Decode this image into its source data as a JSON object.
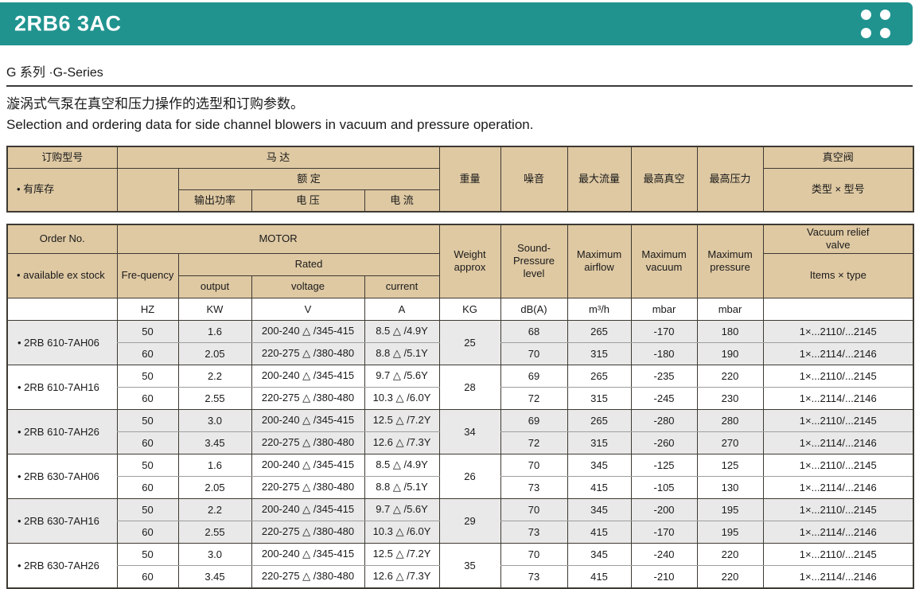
{
  "header": {
    "title": "2RB6 3AC"
  },
  "series_line": "G 系列 ·G-Series",
  "intro": {
    "zh": "漩涡式气泵在真空和压力操作的选型和订购参数。",
    "en": "Selection and ordering data for side channel blowers in vacuum and pressure operation."
  },
  "colors": {
    "accent_teal": "#20938F",
    "header_tan": "#DFC9A3",
    "row_shade_gray": "#E9E9E9",
    "grid_border": "#3E3A32"
  },
  "table_zh": {
    "order_no": "订购型号",
    "motor": "马 达",
    "available": "• 有库存",
    "rated": "额 定",
    "output_power": "输出功率",
    "voltage": "电 压",
    "current": "电 流",
    "weight": "重量",
    "noise": "噪音",
    "max_airflow": "最大流量",
    "max_vacuum": "最高真空",
    "max_pressure": "最高压力",
    "vacuum_valve": "真空阀",
    "type_model": "类型 × 型号"
  },
  "table_en": {
    "order_no": "Order No.",
    "motor": "MOTOR",
    "available": "• available ex stock",
    "frequency": "Fre-quency",
    "rated": "Rated",
    "output": "output",
    "voltage": "voltage",
    "current": "current",
    "weight": "Weight\napprox",
    "sound": "Sound-\nPressure\nlevel",
    "max_airflow": "Maximum\nairflow",
    "max_vacuum": "Maximum\nvacuum",
    "max_pressure": "Maximum\npressure",
    "valve": "Vacuum relief\nvalve",
    "items_type": "Items × type",
    "units": {
      "frequency": "HZ",
      "output": "KW",
      "voltage": "V",
      "current": "A",
      "weight": "KG",
      "sound": "dB(A)",
      "airflow": "m³/h",
      "vacuum": "mbar",
      "pressure": "mbar"
    }
  },
  "groups": [
    {
      "order": "• 2RB 610-7AH06",
      "weight": "25",
      "shaded": true,
      "sub": [
        {
          "hz": "50",
          "kw": "1.6",
          "v": "200-240 △ /345-415",
          "a": "8.5 △ /4.9Y",
          "db": "68",
          "m3h": "265",
          "vac": "-170",
          "pres": "180",
          "valve": "1×...2110/...2145"
        },
        {
          "hz": "60",
          "kw": "2.05",
          "v": "220-275 △ /380-480",
          "a": "8.8 △ /5.1Y",
          "db": "70",
          "m3h": "315",
          "vac": "-180",
          "pres": "190",
          "valve": "1×...2114/...2146"
        }
      ]
    },
    {
      "order": "• 2RB 610-7AH16",
      "weight": "28",
      "shaded": false,
      "sub": [
        {
          "hz": "50",
          "kw": "2.2",
          "v": "200-240 △ /345-415",
          "a": "9.7 △ /5.6Y",
          "db": "69",
          "m3h": "265",
          "vac": "-235",
          "pres": "220",
          "valve": "1×...2110/...2145"
        },
        {
          "hz": "60",
          "kw": "2.55",
          "v": "220-275 △ /380-480",
          "a": "10.3 △ /6.0Y",
          "db": "72",
          "m3h": "315",
          "vac": "-245",
          "pres": "230",
          "valve": "1×...2114/...2146"
        }
      ]
    },
    {
      "order": "• 2RB 610-7AH26",
      "weight": "34",
      "shaded": true,
      "sub": [
        {
          "hz": "50",
          "kw": "3.0",
          "v": "200-240 △ /345-415",
          "a": "12.5 △ /7.2Y",
          "db": "69",
          "m3h": "265",
          "vac": "-280",
          "pres": "280",
          "valve": "1×...2110/...2145"
        },
        {
          "hz": "60",
          "kw": "3.45",
          "v": "220-275 △ /380-480",
          "a": "12.6 △ /7.3Y",
          "db": "72",
          "m3h": "315",
          "vac": "-260",
          "pres": "270",
          "valve": "1×...2114/...2146"
        }
      ]
    },
    {
      "order": "• 2RB 630-7AH06",
      "weight": "26",
      "shaded": false,
      "sub": [
        {
          "hz": "50",
          "kw": "1.6",
          "v": "200-240 △ /345-415",
          "a": "8.5 △ /4.9Y",
          "db": "70",
          "m3h": "345",
          "vac": "-125",
          "pres": "125",
          "valve": "1×...2110/...2145"
        },
        {
          "hz": "60",
          "kw": "2.05",
          "v": "220-275 △ /380-480",
          "a": "8.8 △ /5.1Y",
          "db": "73",
          "m3h": "415",
          "vac": "-105",
          "pres": "130",
          "valve": "1×...2114/...2146"
        }
      ]
    },
    {
      "order": "• 2RB 630-7AH16",
      "weight": "29",
      "shaded": true,
      "sub": [
        {
          "hz": "50",
          "kw": "2.2",
          "v": "200-240 △ /345-415",
          "a": "9.7 △ /5.6Y",
          "db": "70",
          "m3h": "345",
          "vac": "-200",
          "pres": "195",
          "valve": "1×...2110/...2145"
        },
        {
          "hz": "60",
          "kw": "2.55",
          "v": "220-275 △ /380-480",
          "a": "10.3 △ /6.0Y",
          "db": "73",
          "m3h": "415",
          "vac": "-170",
          "pres": "195",
          "valve": "1×...2114/...2146"
        }
      ]
    },
    {
      "order": "• 2RB 630-7AH26",
      "weight": "35",
      "shaded": false,
      "sub": [
        {
          "hz": "50",
          "kw": "3.0",
          "v": "200-240 △ /345-415",
          "a": "12.5 △ /7.2Y",
          "db": "70",
          "m3h": "345",
          "vac": "-240",
          "pres": "220",
          "valve": "1×...2110/...2145"
        },
        {
          "hz": "60",
          "kw": "3.45",
          "v": "220-275 △ /380-480",
          "a": "12.6 △ /7.3Y",
          "db": "73",
          "m3h": "415",
          "vac": "-210",
          "pres": "220",
          "valve": "1×...2114/...2146"
        }
      ]
    }
  ]
}
